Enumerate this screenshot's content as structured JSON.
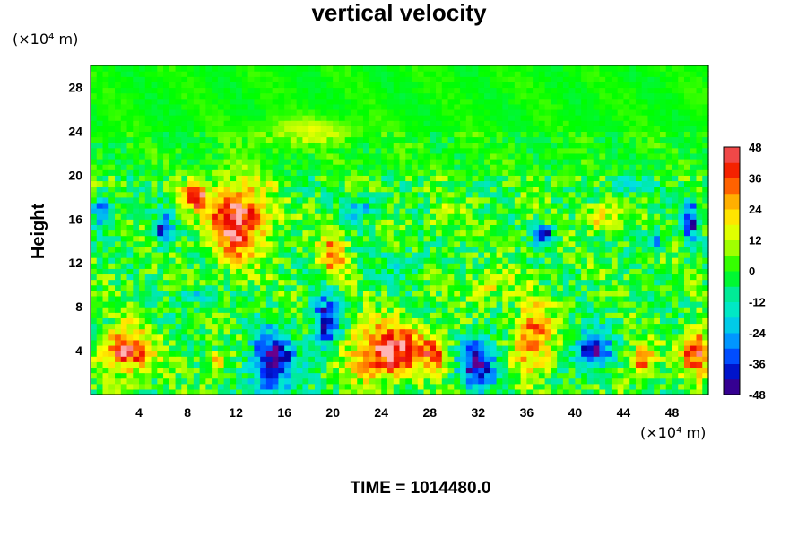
{
  "chart_data": {
    "type": "heatmap",
    "title": "vertical velocity",
    "ylabel": "Height",
    "xlabel": "",
    "x_unit": "(×10⁴ m)",
    "y_unit": "(×10⁴ m)",
    "xlim": [
      0,
      51
    ],
    "ylim": [
      0,
      30
    ],
    "x_ticks": [
      "4",
      "8",
      "12",
      "16",
      "20",
      "24",
      "28",
      "32",
      "36",
      "40",
      "44",
      "48"
    ],
    "y_ticks": [
      "4",
      "8",
      "12",
      "16",
      "20",
      "24",
      "28"
    ],
    "colorbar": {
      "range": [
        -48,
        48
      ],
      "step": 6,
      "tick_labels": [
        "48",
        "36",
        "24",
        "12",
        "0",
        "-12",
        "-24",
        "-36",
        "-48"
      ]
    },
    "features": [
      {
        "x": 12,
        "y": 16,
        "value": 48,
        "spread": [
          2.5,
          3.5
        ]
      },
      {
        "x": 8.5,
        "y": 18,
        "value": 44,
        "spread": [
          1.0,
          1.0
        ]
      },
      {
        "x": 15,
        "y": 3,
        "value": -48,
        "spread": [
          1.8,
          3.0
        ]
      },
      {
        "x": 19.5,
        "y": 6.5,
        "value": -42,
        "spread": [
          1.2,
          2.5
        ]
      },
      {
        "x": 6,
        "y": 15,
        "value": -40,
        "spread": [
          0.7,
          1.5
        ]
      },
      {
        "x": 24.5,
        "y": 4,
        "value": 48,
        "spread": [
          3.0,
          2.5
        ]
      },
      {
        "x": 3,
        "y": 4,
        "value": 44,
        "spread": [
          2.0,
          2.0
        ]
      },
      {
        "x": 32,
        "y": 3,
        "value": -46,
        "spread": [
          1.5,
          2.5
        ]
      },
      {
        "x": 41.5,
        "y": 4,
        "value": -44,
        "spread": [
          1.5,
          1.8
        ]
      },
      {
        "x": 50,
        "y": 4,
        "value": 44,
        "spread": [
          1.2,
          2.0
        ]
      },
      {
        "x": 36.5,
        "y": 5,
        "value": 36,
        "spread": [
          1.5,
          3.0
        ]
      },
      {
        "x": 28.5,
        "y": 4,
        "value": 34,
        "spread": [
          1.0,
          1.5
        ]
      },
      {
        "x": 37.5,
        "y": 14.5,
        "value": -38,
        "spread": [
          0.8,
          1.0
        ]
      },
      {
        "x": 49.5,
        "y": 16,
        "value": -40,
        "spread": [
          0.7,
          2.0
        ]
      },
      {
        "x": 46.5,
        "y": 14,
        "value": -30,
        "spread": [
          0.8,
          1.0
        ]
      },
      {
        "x": 22.5,
        "y": 17,
        "value": -24,
        "spread": [
          1.5,
          1.0
        ]
      },
      {
        "x": 1,
        "y": 17,
        "value": -26,
        "spread": [
          0.8,
          1.5
        ]
      },
      {
        "x": 20,
        "y": 13,
        "value": 32,
        "spread": [
          1.0,
          2.0
        ]
      },
      {
        "x": 10.5,
        "y": 3,
        "value": 36,
        "spread": [
          0.7,
          0.8
        ]
      },
      {
        "x": 45.5,
        "y": 3,
        "value": 34,
        "spread": [
          1.0,
          1.5
        ]
      },
      {
        "x": 42,
        "y": 16,
        "value": 26,
        "spread": [
          1.2,
          1.2
        ]
      },
      {
        "x": 29,
        "y": 16,
        "value": 20,
        "spread": [
          1.0,
          1.0
        ]
      },
      {
        "x": 44,
        "y": 19,
        "value": -18,
        "spread": [
          2.0,
          0.8
        ]
      },
      {
        "x": 9,
        "y": 9,
        "value": -22,
        "spread": [
          1.5,
          0.8
        ]
      },
      {
        "x": 26,
        "y": 12,
        "value": -14,
        "spread": [
          2.0,
          1.5
        ]
      },
      {
        "x": 33,
        "y": 10,
        "value": 16,
        "spread": [
          2.0,
          1.5
        ]
      },
      {
        "x": 18,
        "y": 24,
        "value": 14,
        "spread": [
          4.0,
          1.2
        ]
      }
    ]
  },
  "footer": {
    "time_text": "TIME = 1014480.0"
  }
}
